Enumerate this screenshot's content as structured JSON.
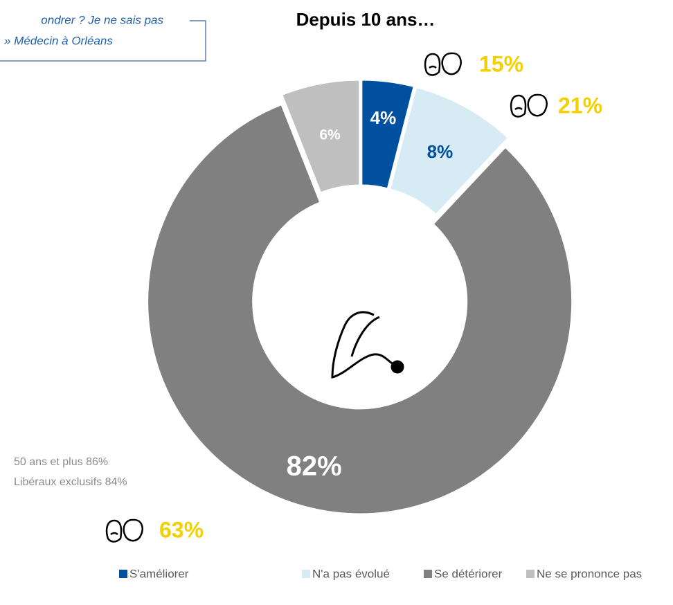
{
  "chart_data": {
    "type": "donut",
    "title": "Depuis 10 ans…",
    "note": [
      "ondrer ? Je ne sais pas",
      "»  Médecin à Orléans"
    ],
    "categories": [
      "S'améliorer",
      "N'a pas évolué",
      "Se détériorer",
      "Ne se prononce pas"
    ],
    "values": [
      4,
      8,
      82,
      6
    ],
    "value_labels": [
      "4%",
      "8%",
      "82%",
      "6%"
    ],
    "colors": [
      "#0050a0",
      "#d7ebf4",
      "#808080",
      "#bfbfbf"
    ],
    "annotations": [
      {
        "text": "15%"
      },
      {
        "text": "21%"
      },
      {
        "text": "63%"
      },
      {
        "text": "50 ans et plus 86%"
      },
      {
        "text": "Libéraux exclusifs 84%"
      }
    ]
  }
}
